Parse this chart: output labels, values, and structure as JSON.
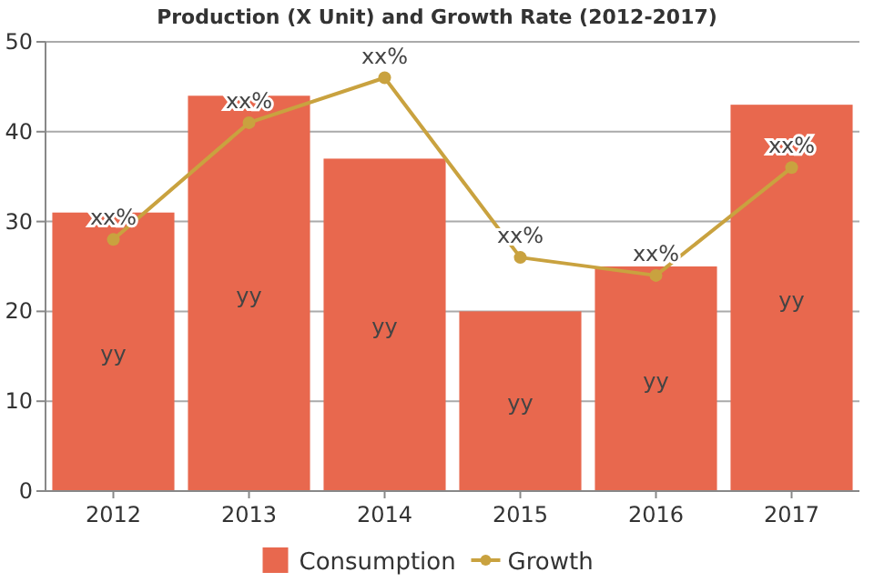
{
  "chart_data": {
    "type": "bar",
    "title": "Production (X Unit) and Growth Rate (2012-2017)",
    "categories": [
      "2012",
      "2013",
      "2014",
      "2015",
      "2016",
      "2017"
    ],
    "series": [
      {
        "name": "Consumption",
        "color": "#e8684e",
        "values": [
          31,
          44,
          37,
          20,
          25,
          43
        ],
        "value_labels": [
          "yy",
          "yy",
          "yy",
          "yy",
          "yy",
          "yy"
        ]
      },
      {
        "name": "Growth",
        "type": "line",
        "color": "#c9a23f",
        "values": [
          28,
          41,
          46,
          26,
          24,
          36
        ],
        "value_labels": [
          "xx%",
          "xx%",
          "xx%",
          "xx%",
          "xx%",
          "xx%"
        ]
      }
    ],
    "ylim": [
      0,
      50
    ],
    "yticks": [
      0,
      10,
      20,
      30,
      40,
      50
    ],
    "grid": "y",
    "legend": "bottom",
    "marker": "circle"
  }
}
